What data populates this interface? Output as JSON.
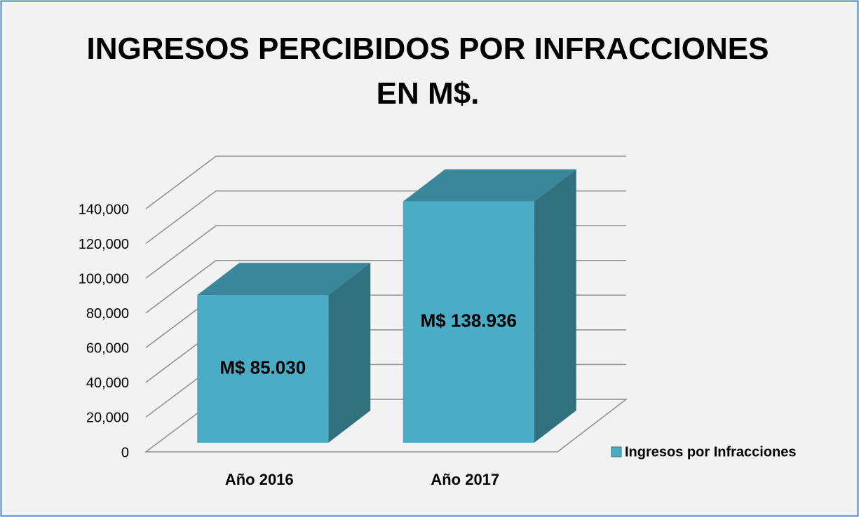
{
  "chart_data": {
    "type": "bar",
    "title": "INGRESOS PERCIBIDOS POR INFRACCIONES EN M$.",
    "categories": [
      "Año 2016",
      "Año 2017"
    ],
    "series": [
      {
        "name": "Ingresos por Infracciones",
        "color": "#4bacc6",
        "values": [
          85030,
          138936
        ],
        "value_labels": [
          "M$ 85.030",
          "M$ 138.936"
        ]
      }
    ],
    "ylim": [
      0,
      140000
    ],
    "yticks": [
      0,
      {
        "value": 20000,
        "label": "20,000"
      },
      {
        "value": 40000,
        "label": "40,000"
      },
      {
        "value": 60000,
        "label": "60,000"
      },
      {
        "value": 80000,
        "label": "80,000"
      },
      {
        "value": 100000,
        "label": "100,000"
      },
      {
        "value": 120000,
        "label": "120,000"
      },
      {
        "value": 140000,
        "label": "140,000"
      }
    ],
    "grid": true,
    "legend": "right"
  }
}
